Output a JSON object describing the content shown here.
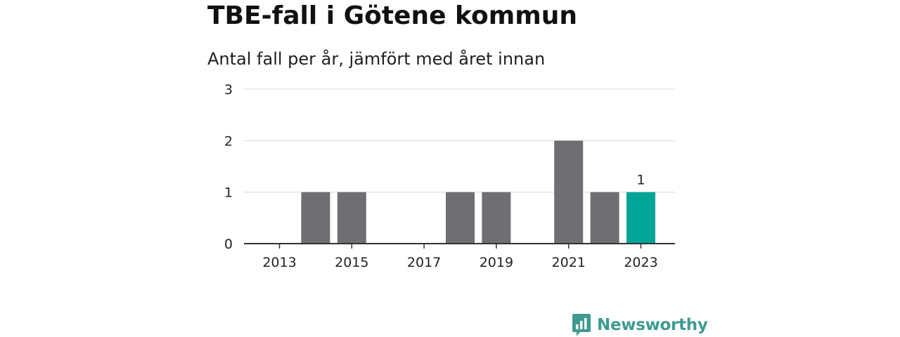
{
  "header": {
    "title": "TBE-fall i Götene kommun",
    "subtitle": "Antal fall per år, jämfört med året innan"
  },
  "brand": {
    "name": "Newsworthy",
    "icon": "bar-chart-bubble-icon",
    "color": "#3f9b91"
  },
  "chart_data": {
    "type": "bar",
    "title": "TBE-fall i Götene kommun",
    "subtitle": "Antal fall per år, jämfört med året innan",
    "xlabel": "",
    "ylabel": "",
    "categories": [
      "2013",
      "2014",
      "2015",
      "2016",
      "2017",
      "2018",
      "2019",
      "2020",
      "2021",
      "2022",
      "2023"
    ],
    "values": [
      0,
      1,
      1,
      0,
      0,
      1,
      1,
      0,
      2,
      1,
      1
    ],
    "x_tick_labels": [
      "2013",
      "2015",
      "2017",
      "2019",
      "2021",
      "2023"
    ],
    "y_ticks": [
      0,
      1,
      2,
      3
    ],
    "ylim": [
      0,
      3
    ],
    "grid": true,
    "highlight_index": 10,
    "highlight_label": "1",
    "colors": {
      "bar": "#6f6e73",
      "highlight": "#00a598",
      "grid": "#dddddd",
      "axis": "#333333"
    }
  }
}
